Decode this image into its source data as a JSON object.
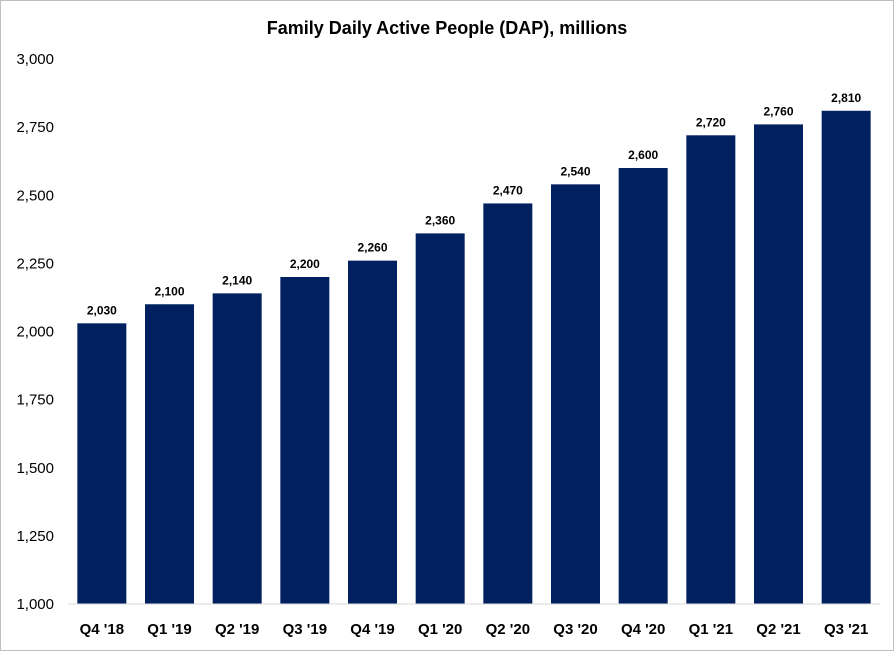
{
  "chart_data": {
    "type": "bar",
    "title": "Family Daily Active People (DAP), millions",
    "xlabel": "",
    "ylabel": "",
    "categories": [
      "Q4 '18",
      "Q1 '19",
      "Q2 '19",
      "Q3 '19",
      "Q4 '19",
      "Q1 '20",
      "Q2 '20",
      "Q3 '20",
      "Q4 '20",
      "Q1 '21",
      "Q2 '21",
      "Q3 '21"
    ],
    "values": [
      2030,
      2100,
      2140,
      2200,
      2260,
      2360,
      2470,
      2540,
      2600,
      2720,
      2760,
      2810
    ],
    "data_labels": [
      "2,030",
      "2,100",
      "2,140",
      "2,200",
      "2,260",
      "2,360",
      "2,470",
      "2,540",
      "2,600",
      "2,720",
      "2,760",
      "2,810"
    ],
    "ylim": [
      1000,
      3000
    ],
    "yticks": [
      1000,
      1250,
      1500,
      1750,
      2000,
      2250,
      2500,
      2750,
      3000
    ],
    "ytick_labels": [
      "1,000",
      "1,250",
      "1,500",
      "1,750",
      "2,000",
      "2,250",
      "2,500",
      "2,750",
      "3,000"
    ],
    "grid": false,
    "legend": "none",
    "bar_color": "#002060"
  }
}
